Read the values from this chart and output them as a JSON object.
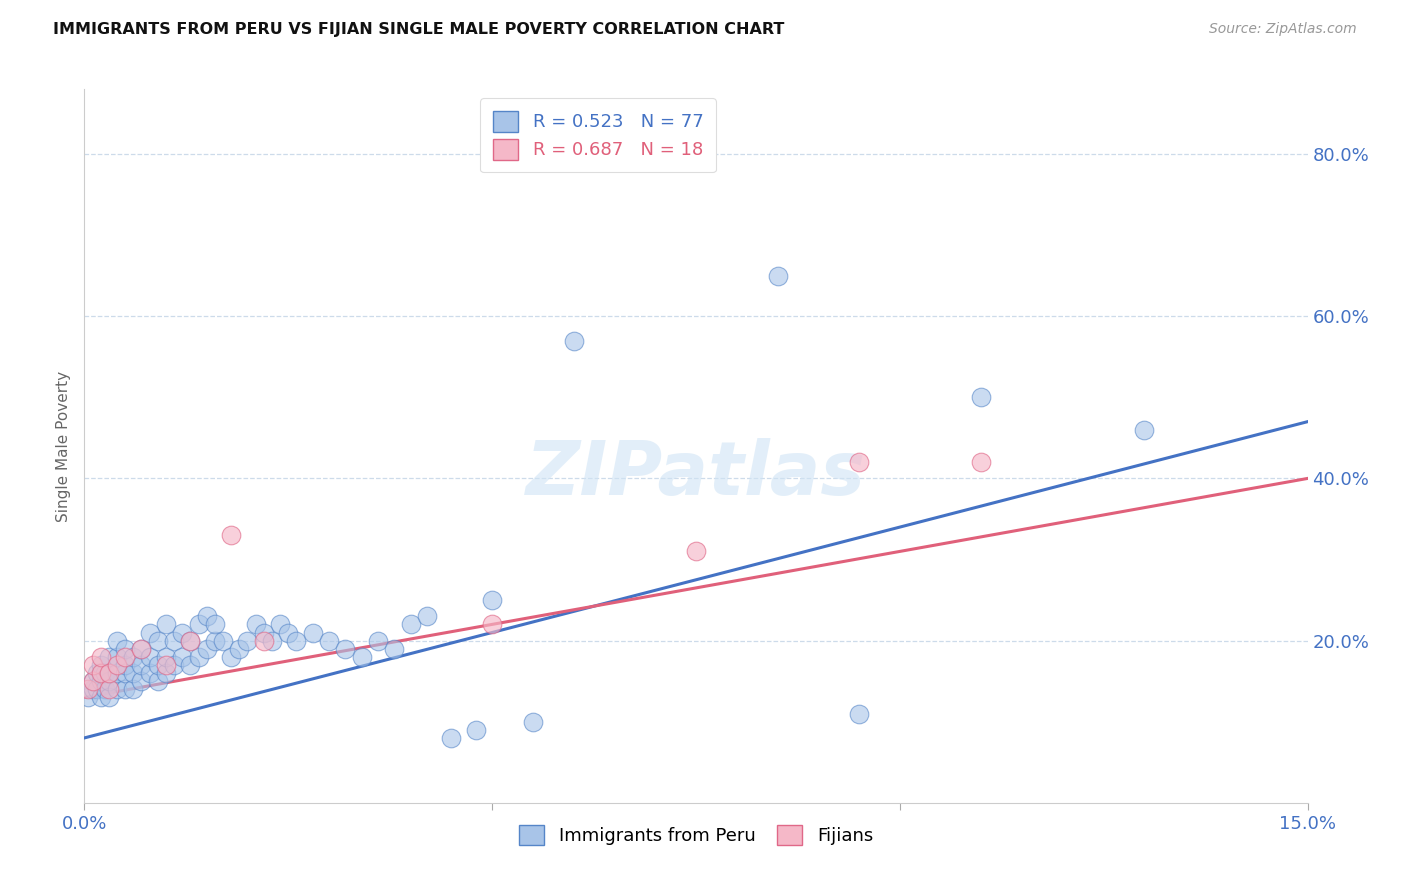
{
  "title": "IMMIGRANTS FROM PERU VS FIJIAN SINGLE MALE POVERTY CORRELATION CHART",
  "source": "Source: ZipAtlas.com",
  "ylabel": "Single Male Poverty",
  "xlim": [
    0.0,
    0.15
  ],
  "ylim": [
    0.0,
    0.88
  ],
  "ytick_values": [
    0.2,
    0.4,
    0.6,
    0.8
  ],
  "ytick_labels": [
    "20.0%",
    "40.0%",
    "60.0%",
    "80.0%"
  ],
  "xtick_values": [
    0.0,
    0.15
  ],
  "xtick_labels": [
    "0.0%",
    "15.0%"
  ],
  "legend1_r": "R = 0.523",
  "legend1_n": "N = 77",
  "legend2_r": "R = 0.687",
  "legend2_n": "N = 18",
  "legend1_label": "Immigrants from Peru",
  "legend2_label": "Fijians",
  "blue_face": "#a8c4e8",
  "blue_edge": "#5585c8",
  "pink_face": "#f5b8c8",
  "pink_edge": "#e06888",
  "line_blue": "#4472c4",
  "line_pink": "#e0607a",
  "watermark": "ZIPatlas",
  "peru_x": [
    0.0005,
    0.001,
    0.001,
    0.0015,
    0.0015,
    0.002,
    0.002,
    0.002,
    0.002,
    0.0025,
    0.0025,
    0.003,
    0.003,
    0.003,
    0.003,
    0.004,
    0.004,
    0.004,
    0.004,
    0.005,
    0.005,
    0.005,
    0.005,
    0.006,
    0.006,
    0.006,
    0.007,
    0.007,
    0.007,
    0.008,
    0.008,
    0.008,
    0.009,
    0.009,
    0.009,
    0.01,
    0.01,
    0.01,
    0.011,
    0.011,
    0.012,
    0.012,
    0.013,
    0.013,
    0.014,
    0.014,
    0.015,
    0.015,
    0.016,
    0.016,
    0.017,
    0.018,
    0.019,
    0.02,
    0.021,
    0.022,
    0.023,
    0.024,
    0.025,
    0.026,
    0.028,
    0.03,
    0.032,
    0.034,
    0.036,
    0.038,
    0.04,
    0.042,
    0.045,
    0.048,
    0.05,
    0.055,
    0.06,
    0.085,
    0.095,
    0.11,
    0.13
  ],
  "peru_y": [
    0.13,
    0.14,
    0.15,
    0.14,
    0.16,
    0.13,
    0.15,
    0.16,
    0.17,
    0.14,
    0.16,
    0.13,
    0.15,
    0.16,
    0.18,
    0.14,
    0.16,
    0.18,
    0.2,
    0.14,
    0.16,
    0.17,
    0.19,
    0.14,
    0.16,
    0.18,
    0.15,
    0.17,
    0.19,
    0.16,
    0.18,
    0.21,
    0.15,
    0.17,
    0.2,
    0.16,
    0.18,
    0.22,
    0.17,
    0.2,
    0.18,
    0.21,
    0.17,
    0.2,
    0.18,
    0.22,
    0.19,
    0.23,
    0.2,
    0.22,
    0.2,
    0.18,
    0.19,
    0.2,
    0.22,
    0.21,
    0.2,
    0.22,
    0.21,
    0.2,
    0.21,
    0.2,
    0.19,
    0.18,
    0.2,
    0.19,
    0.22,
    0.23,
    0.08,
    0.09,
    0.25,
    0.1,
    0.57,
    0.65,
    0.11,
    0.5,
    0.46
  ],
  "fijian_x": [
    0.0005,
    0.001,
    0.001,
    0.002,
    0.002,
    0.003,
    0.003,
    0.004,
    0.005,
    0.007,
    0.01,
    0.013,
    0.018,
    0.022,
    0.05,
    0.075,
    0.095,
    0.11
  ],
  "fijian_y": [
    0.14,
    0.15,
    0.17,
    0.16,
    0.18,
    0.14,
    0.16,
    0.17,
    0.18,
    0.19,
    0.17,
    0.2,
    0.33,
    0.2,
    0.22,
    0.31,
    0.42,
    0.42
  ],
  "blue_line_x0": 0.0,
  "blue_line_y0": 0.08,
  "blue_line_x1": 0.15,
  "blue_line_y1": 0.47,
  "pink_line_x0": 0.0,
  "pink_line_y0": 0.13,
  "pink_line_x1": 0.15,
  "pink_line_y1": 0.4
}
